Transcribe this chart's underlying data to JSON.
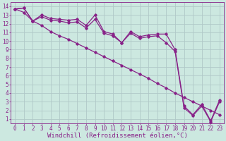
{
  "bg_color": "#cce8e0",
  "grid_color": "#b0c8c8",
  "line_color": "#882288",
  "marker": "D",
  "markersize": 1.8,
  "linewidth": 0.9,
  "xlabel": "Windchill (Refroidissement éolien,°C)",
  "xlabel_fontsize": 6.5,
  "tick_fontsize": 5.5,
  "ylim": [
    0.5,
    14.5
  ],
  "xlim": [
    -0.5,
    23.5
  ],
  "yticks": [
    1,
    2,
    3,
    4,
    5,
    6,
    7,
    8,
    9,
    10,
    11,
    12,
    13,
    14
  ],
  "xticks": [
    0,
    1,
    2,
    3,
    4,
    5,
    6,
    7,
    8,
    9,
    10,
    11,
    12,
    13,
    14,
    15,
    16,
    17,
    18,
    19,
    20,
    21,
    22,
    23
  ],
  "line1_x": [
    0,
    1,
    2,
    3,
    4,
    5,
    6,
    7,
    8,
    9,
    10,
    11,
    12,
    13,
    14,
    15,
    16,
    17,
    18,
    19,
    20,
    21,
    22,
    23
  ],
  "line1_y": [
    13.7,
    13.8,
    12.3,
    13.0,
    12.6,
    12.5,
    12.4,
    12.5,
    11.8,
    13.0,
    11.1,
    10.8,
    9.8,
    11.1,
    10.5,
    10.7,
    10.8,
    10.8,
    9.0,
    2.5,
    1.5,
    2.7,
    0.8,
    3.2
  ],
  "line2_x": [
    0,
    1,
    2,
    3,
    4,
    5,
    6,
    7,
    8,
    9,
    10,
    11,
    12,
    13,
    14,
    15,
    16,
    17,
    18,
    19,
    20,
    21,
    22,
    23
  ],
  "line2_y": [
    13.7,
    13.8,
    12.3,
    12.8,
    12.4,
    12.3,
    12.1,
    12.2,
    11.5,
    12.5,
    10.9,
    10.6,
    9.8,
    10.9,
    10.3,
    10.5,
    10.6,
    9.8,
    8.8,
    2.3,
    1.4,
    2.5,
    0.7,
    3.0
  ],
  "line3_x": [
    0,
    1,
    2,
    3,
    4,
    5,
    6,
    7,
    8,
    9,
    10,
    11,
    12,
    13,
    14,
    15,
    16,
    17,
    18,
    19,
    20,
    21,
    22,
    23
  ],
  "line3_y": [
    13.7,
    13.3,
    12.3,
    11.8,
    11.1,
    10.6,
    10.2,
    9.7,
    9.2,
    8.7,
    8.2,
    7.7,
    7.2,
    6.7,
    6.2,
    5.7,
    5.1,
    4.6,
    4.0,
    3.5,
    3.0,
    2.5,
    2.0,
    1.5
  ]
}
